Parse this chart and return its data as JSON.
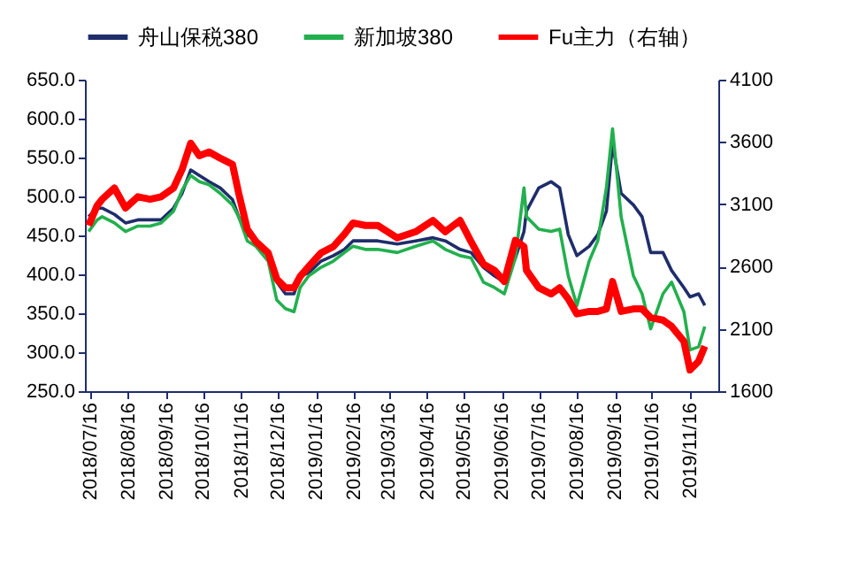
{
  "chart_data": {
    "type": "line",
    "legend": "top",
    "grid": false,
    "x": [
      "2018-07-15",
      "2018-07-22",
      "2018-07-26",
      "2018-08-05",
      "2018-08-14",
      "2018-08-24",
      "2018-09-03",
      "2018-09-12",
      "2018-09-22",
      "2018-09-29",
      "2018-10-06",
      "2018-10-13",
      "2018-10-21",
      "2018-10-30",
      "2018-11-09",
      "2018-11-14",
      "2018-11-21",
      "2018-11-28",
      "2018-12-08",
      "2018-12-15",
      "2018-12-22",
      "2018-12-29",
      "2019-01-03",
      "2019-01-10",
      "2019-01-20",
      "2019-01-30",
      "2019-02-08",
      "2019-02-15",
      "2019-02-25",
      "2019-03-07",
      "2019-03-23",
      "2019-04-07",
      "2019-04-21",
      "2019-05-01",
      "2019-05-13",
      "2019-05-22",
      "2019-06-01",
      "2019-06-10",
      "2019-06-18",
      "2019-06-27",
      "2019-07-04",
      "2019-07-06",
      "2019-07-16",
      "2019-07-26",
      "2019-08-02",
      "2019-08-09",
      "2019-08-16",
      "2019-08-26",
      "2019-09-02",
      "2019-09-09",
      "2019-09-14",
      "2019-09-21",
      "2019-10-01",
      "2019-10-08",
      "2019-10-15",
      "2019-10-25",
      "2019-11-01",
      "2019-11-11",
      "2019-11-16",
      "2019-11-23",
      "2019-11-28"
    ],
    "xlim": [
      "2018-07-12",
      "2019-12-09"
    ],
    "xticks": [
      {
        "value": "2018-07-16",
        "label": "2018/07/16"
      },
      {
        "value": "2018-08-16",
        "label": "2018/08/16"
      },
      {
        "value": "2018-09-16",
        "label": "2018/09/16"
      },
      {
        "value": "2018-10-16",
        "label": "2018/10/16"
      },
      {
        "value": "2018-11-16",
        "label": "2018/11/16"
      },
      {
        "value": "2018-12-16",
        "label": "2018/12/16"
      },
      {
        "value": "2019-01-16",
        "label": "2019/01/16"
      },
      {
        "value": "2019-02-16",
        "label": "2019/02/16"
      },
      {
        "value": "2019-03-16",
        "label": "2019/03/16"
      },
      {
        "value": "2019-04-16",
        "label": "2019/04/16"
      },
      {
        "value": "2019-05-16",
        "label": "2019/05/16"
      },
      {
        "value": "2019-06-16",
        "label": "2019/06/16"
      },
      {
        "value": "2019-07-16",
        "label": "2019/07/16"
      },
      {
        "value": "2019-08-16",
        "label": "2019/08/16"
      },
      {
        "value": "2019-09-16",
        "label": "2019/09/16"
      },
      {
        "value": "2019-10-16",
        "label": "2019/10/16"
      },
      {
        "value": "2019-11-16",
        "label": "2019/11/16"
      }
    ],
    "ylim": [
      250,
      650
    ],
    "yticks": [
      {
        "value": 250,
        "label": "250.0"
      },
      {
        "value": 300,
        "label": "300.0"
      },
      {
        "value": 350,
        "label": "350.0"
      },
      {
        "value": 400,
        "label": "400.0"
      },
      {
        "value": 450,
        "label": "450.0"
      },
      {
        "value": 500,
        "label": "500.0"
      },
      {
        "value": 550,
        "label": "550.0"
      },
      {
        "value": 600,
        "label": "600.0"
      },
      {
        "value": 650,
        "label": "650.0"
      }
    ],
    "y2lim": [
      1600,
      4100
    ],
    "y2ticks": [
      1600,
      2100,
      2600,
      3100,
      3600,
      4100
    ],
    "series": [
      {
        "name": "舟山保税380",
        "color": "#1f2d6b",
        "values": [
          474,
          485,
          485,
          477,
          466,
          470,
          470,
          470,
          485,
          504,
          534,
          527,
          519,
          511,
          496,
          474,
          451,
          443,
          428,
          390,
          375,
          375,
          398,
          402,
          417,
          424,
          432,
          443,
          443,
          443,
          439,
          443,
          447,
          443,
          432,
          428,
          409,
          398,
          390,
          421,
          455,
          481,
          511,
          519,
          511,
          451,
          424,
          436,
          451,
          481,
          568,
          504,
          489,
          474,
          428,
          428,
          405,
          383,
          371,
          375,
          360
        ]
      },
      {
        "name": "新加坡380",
        "color": "#22b04e",
        "values": [
          455,
          470,
          474,
          466,
          455,
          462,
          462,
          466,
          481,
          508,
          527,
          519,
          515,
          504,
          489,
          474,
          443,
          436,
          417,
          367,
          356,
          352,
          383,
          398,
          409,
          417,
          428,
          436,
          432,
          432,
          428,
          436,
          443,
          432,
          424,
          421,
          390,
          383,
          375,
          421,
          511,
          474,
          458,
          455,
          458,
          398,
          360,
          417,
          443,
          511,
          587,
          474,
          398,
          375,
          330,
          375,
          390,
          352,
          303,
          307,
          333
        ]
      },
      {
        "name": "Fu主力（右轴）",
        "color": "#ff0000",
        "axis": "y2",
        "values": [
          2930,
          3090,
          3140,
          3230,
          3070,
          3160,
          3140,
          3160,
          3230,
          3380,
          3590,
          3490,
          3520,
          3470,
          3420,
          3190,
          2900,
          2800,
          2710,
          2500,
          2430,
          2430,
          2520,
          2600,
          2710,
          2760,
          2860,
          2950,
          2930,
          2930,
          2830,
          2880,
          2970,
          2880,
          2970,
          2800,
          2620,
          2570,
          2480,
          2810,
          2760,
          2570,
          2430,
          2380,
          2430,
          2340,
          2220,
          2240,
          2240,
          2260,
          2480,
          2240,
          2260,
          2260,
          2190,
          2170,
          2120,
          2000,
          1770,
          1840,
          1960
        ]
      }
    ]
  }
}
